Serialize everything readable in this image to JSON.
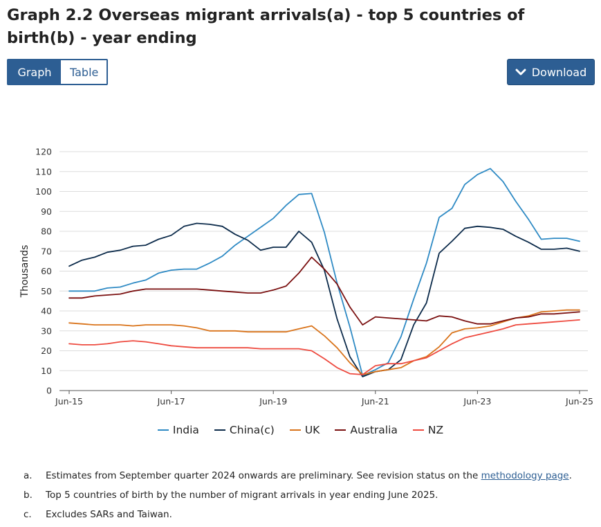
{
  "page": {
    "title": "Graph 2.2 Overseas migrant arrivals(a) - top 5 countries of birth(b) - year ending"
  },
  "toggle": {
    "graph_label": "Graph",
    "table_label": "Table"
  },
  "download": {
    "label": "Download",
    "icon": "chevron-down-icon"
  },
  "chart_data": {
    "type": "line",
    "title": "Graph 2.2 Overseas migrant arrivals(a) - top 5 countries of birth(b) - year ending",
    "ylabel": "Thousands",
    "xlabel": "",
    "ylim": [
      0,
      120
    ],
    "yticks": [
      0,
      10,
      20,
      30,
      40,
      50,
      60,
      70,
      80,
      90,
      100,
      110,
      120
    ],
    "xticklabels": [
      "Jun-15",
      "Jun-17",
      "Jun-19",
      "Jun-21",
      "Jun-23",
      "Jun-25"
    ],
    "x": [
      "Jun-15",
      "Sep-15",
      "Dec-15",
      "Mar-16",
      "Jun-16",
      "Sep-16",
      "Dec-16",
      "Mar-17",
      "Jun-17",
      "Sep-17",
      "Dec-17",
      "Mar-18",
      "Jun-18",
      "Sep-18",
      "Dec-18",
      "Mar-19",
      "Jun-19",
      "Sep-19",
      "Dec-19",
      "Mar-20",
      "Jun-20",
      "Sep-20",
      "Dec-20",
      "Mar-21",
      "Jun-21",
      "Sep-21",
      "Dec-21",
      "Mar-22",
      "Jun-22",
      "Sep-22",
      "Dec-22",
      "Mar-23",
      "Jun-23",
      "Sep-23",
      "Dec-23",
      "Mar-24",
      "Jun-24",
      "Sep-24",
      "Dec-24",
      "Mar-25",
      "Jun-25"
    ],
    "grid": true,
    "legend_position": "bottom",
    "series": [
      {
        "name": "India",
        "color": "#2e8ac4",
        "values": [
          50,
          50,
          50,
          51.5,
          52,
          54,
          55.5,
          59,
          60.5,
          61,
          61,
          64,
          67.5,
          73,
          77.5,
          82,
          86.5,
          93,
          98.5,
          99,
          79.5,
          54,
          32,
          7.5,
          10.5,
          14,
          27,
          46,
          64,
          87,
          91.5,
          103.5,
          108.5,
          111.5,
          105,
          95,
          86,
          76,
          76.5,
          76.5,
          75
        ]
      },
      {
        "name": "China(c)",
        "color": "#0b2a4a",
        "values": [
          62.5,
          65.5,
          67,
          69.5,
          70.5,
          72.5,
          73,
          76,
          78,
          82.5,
          84,
          83.5,
          82.5,
          78.5,
          75.5,
          70.5,
          72,
          72,
          80,
          74.5,
          60.5,
          36,
          17,
          7,
          9.5,
          10.5,
          15.5,
          33,
          44,
          69,
          75,
          81.5,
          82.5,
          82,
          81,
          77.5,
          74.5,
          71,
          71,
          71.5,
          70
        ]
      },
      {
        "name": "UK",
        "color": "#d9731a",
        "values": [
          34,
          33.5,
          33,
          33,
          33,
          32.5,
          33,
          33,
          33,
          32.5,
          31.5,
          30,
          30,
          30,
          29.5,
          29.5,
          29.5,
          29.5,
          31,
          32.5,
          27.5,
          21.5,
          14,
          8,
          9.5,
          10.5,
          11.5,
          15,
          17,
          22,
          29,
          31,
          31.5,
          32.5,
          34.5,
          36.5,
          37.5,
          39.5,
          40,
          40.5,
          40.5
        ]
      },
      {
        "name": "Australia",
        "color": "#7a0f0f",
        "values": [
          46.5,
          46.5,
          47.5,
          48,
          48.5,
          50,
          51,
          51,
          51,
          51,
          51,
          50.5,
          50,
          49.5,
          49,
          49,
          50.5,
          52.5,
          59,
          67,
          61,
          53.5,
          42,
          33,
          37,
          36.5,
          36,
          35.5,
          35,
          37.5,
          37,
          35,
          33.5,
          33.5,
          35,
          36.5,
          37,
          38.5,
          38.5,
          39,
          39.5
        ]
      },
      {
        "name": "NZ",
        "color": "#ee4a3f",
        "values": [
          23.5,
          23,
          23,
          23.5,
          24.5,
          25,
          24.5,
          23.5,
          22.5,
          22,
          21.5,
          21.5,
          21.5,
          21.5,
          21.5,
          21,
          21,
          21,
          21,
          20,
          16,
          11.5,
          8.5,
          8,
          12.5,
          13.5,
          13.5,
          15,
          16.5,
          20,
          23.5,
          26.5,
          28,
          29.5,
          31,
          33,
          33.5,
          34,
          34.5,
          35,
          35.5
        ]
      }
    ]
  },
  "notes": [
    {
      "label": "a.",
      "text_before": "Estimates from September quarter 2024 onwards are preliminary. See revision status on the ",
      "link": "methodology page",
      "text_after": "."
    },
    {
      "label": "b.",
      "text_before": "Top 5 countries of birth by the number of migrant arrivals in year ending June 2025.",
      "link": "",
      "text_after": ""
    },
    {
      "label": "c.",
      "text_before": "Excludes SARs and Taiwan.",
      "link": "",
      "text_after": ""
    }
  ]
}
